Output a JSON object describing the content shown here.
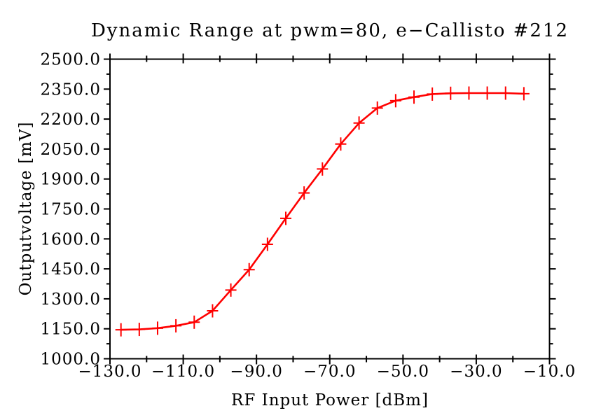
{
  "chart_data": {
    "type": "line",
    "title": "Dynamic Range at pwm=80, e−Callisto #212",
    "xlabel": "RF Input Power [dBm]",
    "ylabel": "Outputvoltage [mV]",
    "xlim": [
      -130,
      -10
    ],
    "ylim": [
      1000,
      2500
    ],
    "grid": false,
    "legend": "none",
    "marker": "plus",
    "colors": {
      "line": "#ff0000",
      "axis": "#000000",
      "background": "#ffffff"
    },
    "series": [
      {
        "name": "output-voltage",
        "x": [
          -127,
          -122,
          -117,
          -112,
          -107,
          -102,
          -97,
          -92,
          -87,
          -82,
          -77,
          -72,
          -67,
          -62,
          -57,
          -52,
          -47,
          -42,
          -37,
          -32,
          -27,
          -22,
          -17
        ],
        "y": [
          1145,
          1147,
          1153,
          1165,
          1183,
          1240,
          1344,
          1446,
          1573,
          1703,
          1830,
          1950,
          2075,
          2180,
          2255,
          2292,
          2310,
          2325,
          2329,
          2330,
          2330,
          2330,
          2327
        ]
      }
    ],
    "x_ticks": {
      "major_values": [
        -130,
        -110,
        -90,
        -70,
        -50,
        -30,
        -10
      ],
      "major_labels": [
        "−130.0",
        "−110.0",
        "−90.0",
        "−70.0",
        "−50.0",
        "−30.0",
        "−10.0"
      ],
      "minor_values": [
        -120,
        -100,
        -80,
        -60,
        -40,
        -20
      ]
    },
    "y_ticks": {
      "major_values": [
        1000,
        1150,
        1300,
        1450,
        1600,
        1750,
        1900,
        2050,
        2200,
        2350,
        2500
      ],
      "major_labels": [
        "1000.0",
        "1150.0",
        "1300.0",
        "1450.0",
        "1600.0",
        "1750.0",
        "1900.0",
        "2050.0",
        "2200.0",
        "2350.0",
        "2500.0"
      ],
      "minor_values": [
        1075,
        1225,
        1375,
        1525,
        1675,
        1825,
        1975,
        2125,
        2275,
        2425
      ]
    }
  }
}
